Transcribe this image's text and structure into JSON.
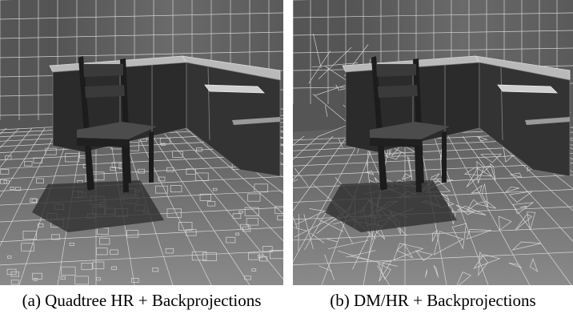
{
  "figure": {
    "panels": [
      {
        "id": "a",
        "caption": "(a) Quadtree HR + Backprojections",
        "mesh_style": "quadtree"
      },
      {
        "id": "b",
        "caption": "(b) DM/HR + Backprojections",
        "mesh_style": "triangulated"
      }
    ],
    "colors": {
      "wall": "#5e5e5e",
      "floor": "#6f6f6f",
      "wireframe": "#e6e6e6",
      "counter_top": "#b9b9b9",
      "cabinet": "#2b2b2b",
      "chair": "#1c1c1c",
      "shadow": "#303030"
    }
  }
}
